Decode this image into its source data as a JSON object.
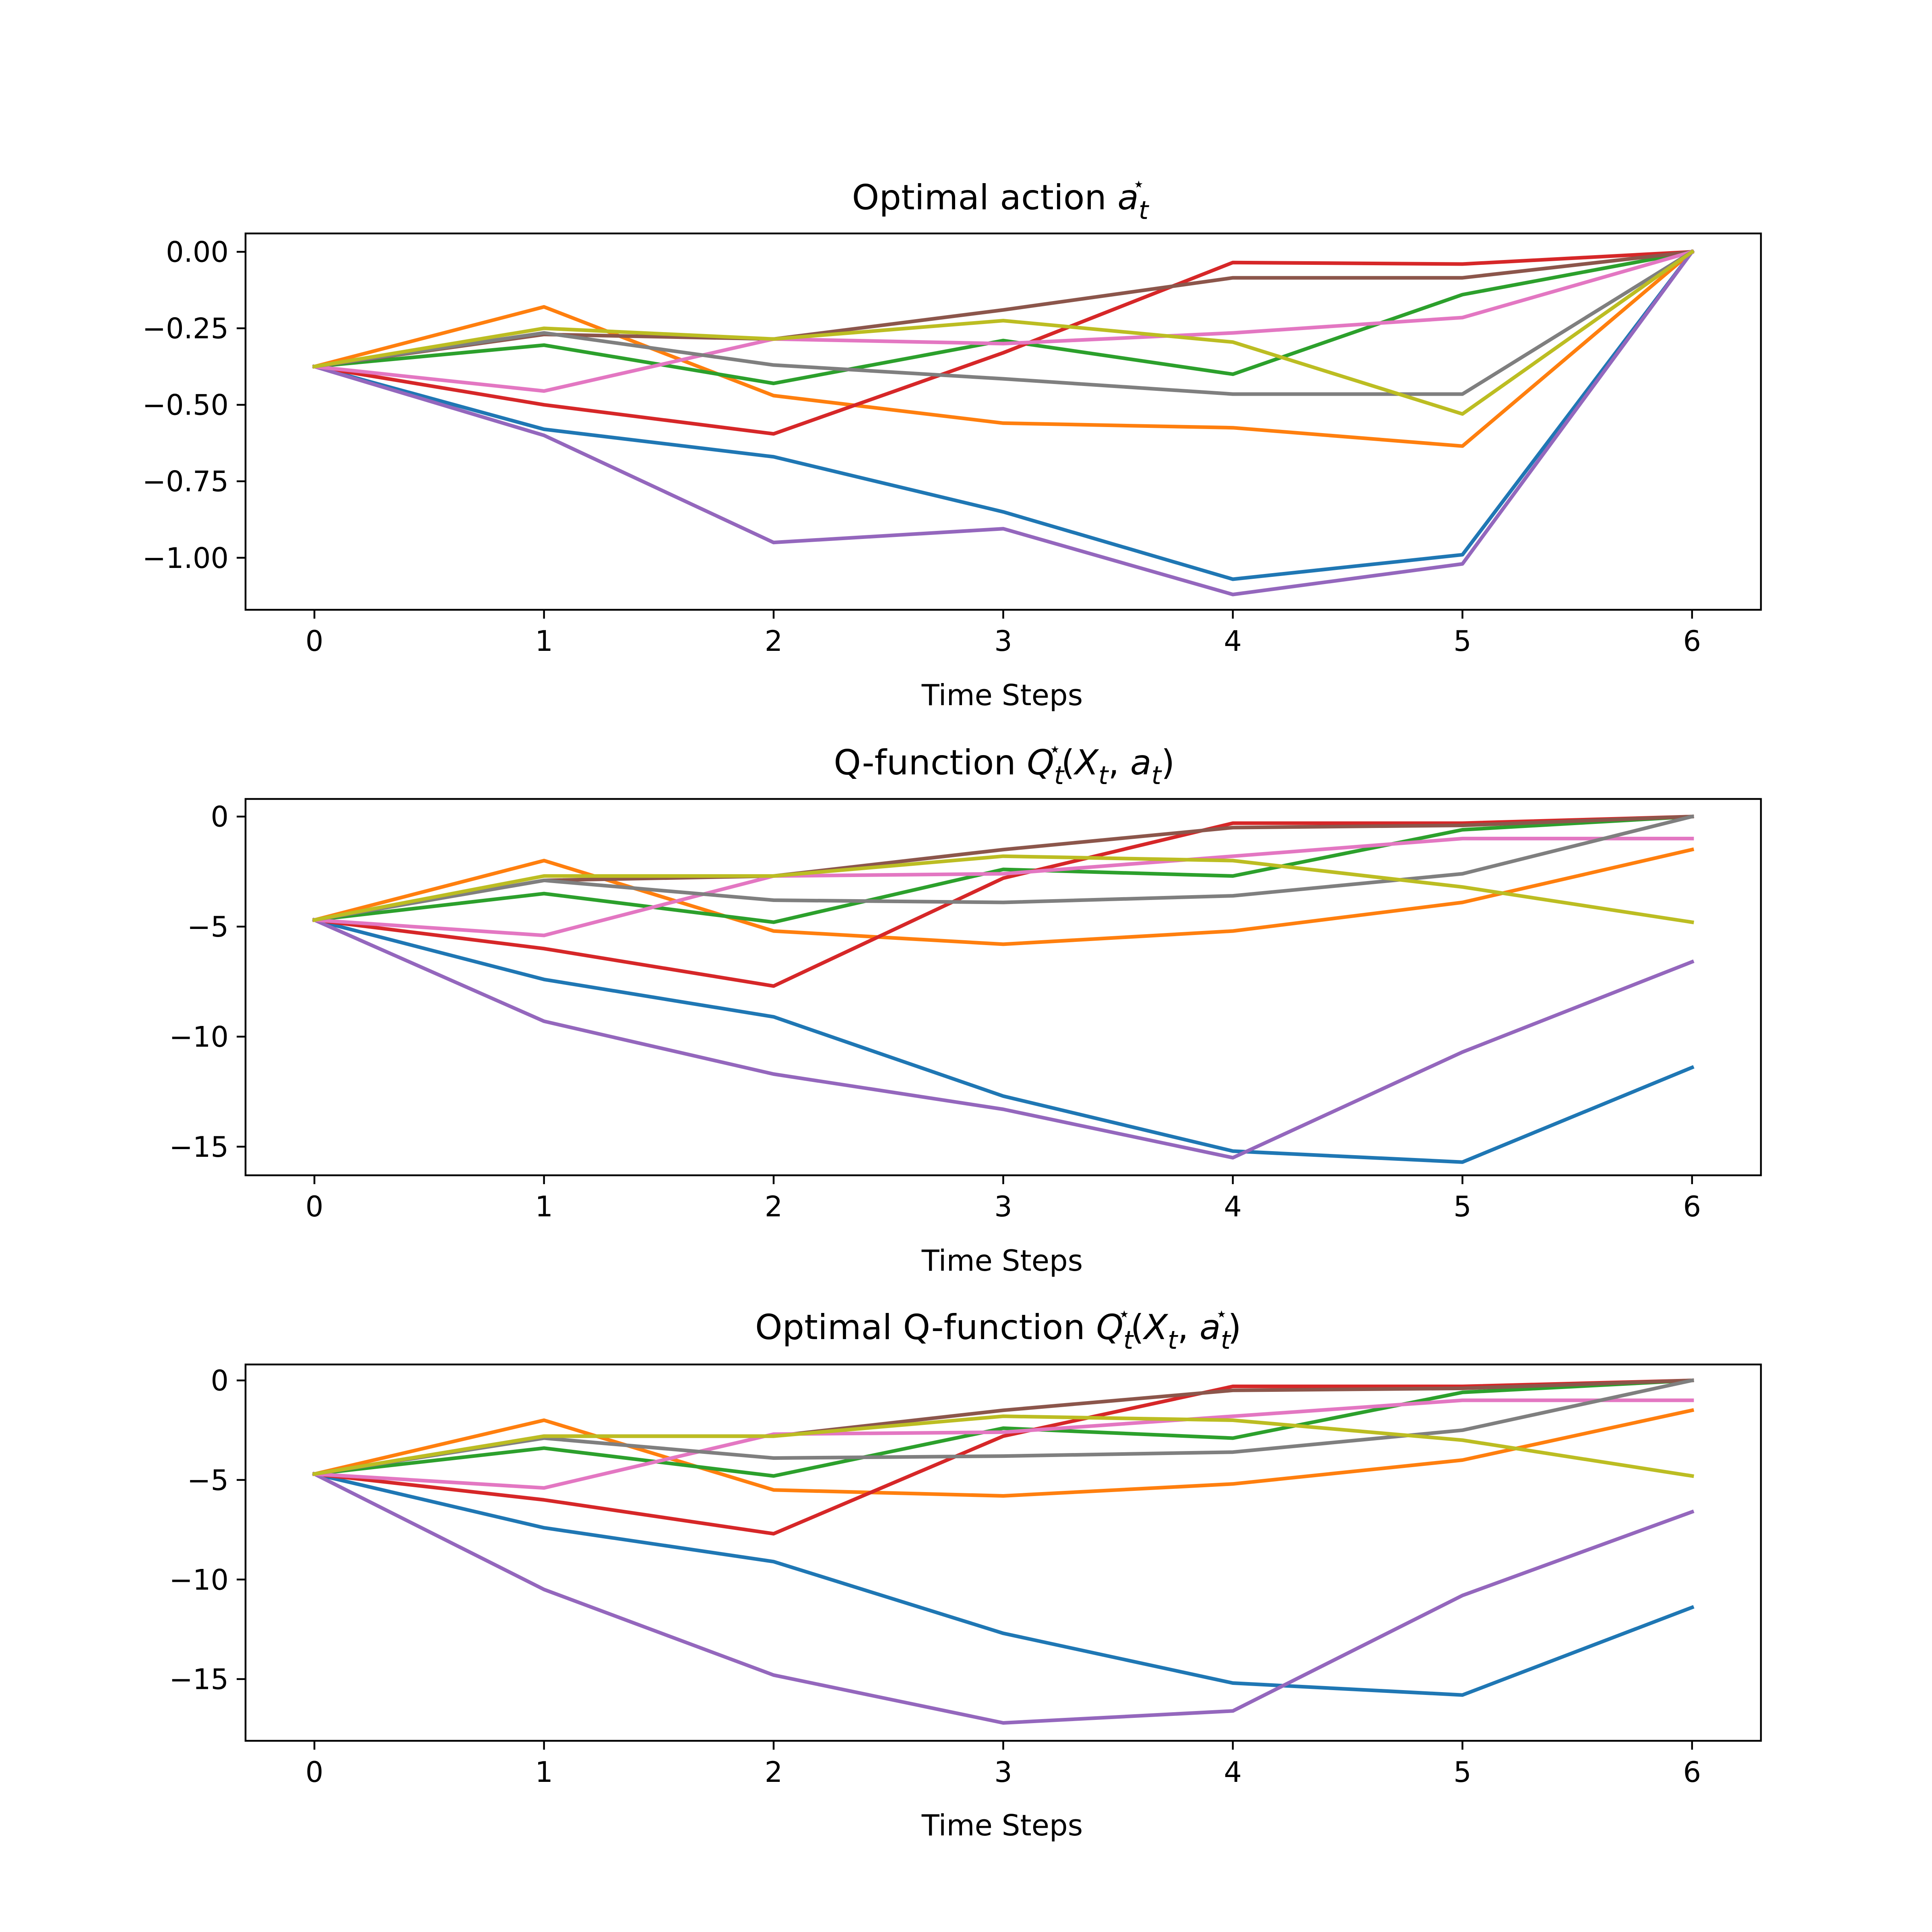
{
  "chart_data": [
    {
      "type": "line",
      "title": "Optimal action a*_t",
      "title_parts": {
        "main": "Optimal action ",
        "math": [
          "a",
          "t",
          "⋆"
        ]
      },
      "xlabel": "Time Steps",
      "ylabel": "",
      "x": [
        0,
        1,
        2,
        3,
        4,
        5,
        6
      ],
      "xlim": [
        -0.3,
        6.3
      ],
      "ylim": [
        -1.17,
        0.06
      ],
      "xticks": [
        0,
        1,
        2,
        3,
        4,
        5,
        6
      ],
      "xtick_labels": [
        "0",
        "1",
        "2",
        "3",
        "4",
        "5",
        "6"
      ],
      "yticks": [
        0,
        -0.25,
        -0.5,
        -0.75,
        -1.0
      ],
      "ytick_labels": [
        "0.00",
        "−0.25",
        "−0.50",
        "−0.75",
        "−1.00"
      ],
      "grid": false,
      "series": [
        {
          "color": "#1f77b4",
          "values": [
            -0.375,
            -0.58,
            -0.67,
            -0.85,
            -1.07,
            -0.99,
            0.0
          ]
        },
        {
          "color": "#ff7f0e",
          "values": [
            -0.375,
            -0.18,
            -0.47,
            -0.56,
            -0.575,
            -0.635,
            0.0
          ]
        },
        {
          "color": "#2ca02c",
          "values": [
            -0.375,
            -0.305,
            -0.43,
            -0.29,
            -0.4,
            -0.14,
            0.0
          ]
        },
        {
          "color": "#d62728",
          "values": [
            -0.375,
            -0.5,
            -0.595,
            -0.33,
            -0.035,
            -0.04,
            0.0
          ]
        },
        {
          "color": "#9467bd",
          "values": [
            -0.375,
            -0.6,
            -0.95,
            -0.905,
            -1.12,
            -1.02,
            0.0
          ]
        },
        {
          "color": "#8c564b",
          "values": [
            -0.375,
            -0.27,
            -0.285,
            -0.19,
            -0.085,
            -0.085,
            0.0
          ]
        },
        {
          "color": "#e377c2",
          "values": [
            -0.375,
            -0.455,
            -0.285,
            -0.3,
            -0.265,
            -0.215,
            0.0
          ]
        },
        {
          "color": "#7f7f7f",
          "values": [
            -0.375,
            -0.265,
            -0.37,
            -0.415,
            -0.465,
            -0.465,
            0.0
          ]
        },
        {
          "color": "#bcbd22",
          "values": [
            -0.375,
            -0.25,
            -0.285,
            -0.225,
            -0.295,
            -0.53,
            0.0
          ]
        }
      ]
    },
    {
      "type": "line",
      "title": "Q-function Q*_t(X_t, a_t)",
      "title_parts": {
        "main": "Q-function "
      },
      "xlabel": "Time Steps",
      "ylabel": "",
      "x": [
        0,
        1,
        2,
        3,
        4,
        5,
        6
      ],
      "xlim": [
        -0.3,
        6.3
      ],
      "ylim": [
        -16.3,
        0.8
      ],
      "xticks": [
        0,
        1,
        2,
        3,
        4,
        5,
        6
      ],
      "xtick_labels": [
        "0",
        "1",
        "2",
        "3",
        "4",
        "5",
        "6"
      ],
      "yticks": [
        0,
        -5,
        -10,
        -15
      ],
      "ytick_labels": [
        "0",
        "−5",
        "−10",
        "−15"
      ],
      "grid": false,
      "series": [
        {
          "color": "#1f77b4",
          "values": [
            -4.7,
            -7.4,
            -9.1,
            -12.7,
            -15.2,
            -15.7,
            -11.4
          ]
        },
        {
          "color": "#ff7f0e",
          "values": [
            -4.7,
            -2.0,
            -5.2,
            -5.8,
            -5.2,
            -3.9,
            -1.5
          ]
        },
        {
          "color": "#2ca02c",
          "values": [
            -4.7,
            -3.5,
            -4.8,
            -2.4,
            -2.7,
            -0.6,
            0.0
          ]
        },
        {
          "color": "#d62728",
          "values": [
            -4.7,
            -6.0,
            -7.7,
            -2.8,
            -0.3,
            -0.3,
            0.0
          ]
        },
        {
          "color": "#9467bd",
          "values": [
            -4.7,
            -9.3,
            -11.7,
            -13.3,
            -15.5,
            -10.7,
            -6.6
          ]
        },
        {
          "color": "#8c564b",
          "values": [
            -4.7,
            -2.9,
            -2.7,
            -1.5,
            -0.5,
            -0.4,
            0.0
          ]
        },
        {
          "color": "#e377c2",
          "values": [
            -4.7,
            -5.4,
            -2.7,
            -2.6,
            -1.8,
            -1.0,
            -1.0
          ]
        },
        {
          "color": "#7f7f7f",
          "values": [
            -4.7,
            -2.9,
            -3.8,
            -3.9,
            -3.6,
            -2.6,
            0.0
          ]
        },
        {
          "color": "#bcbd22",
          "values": [
            -4.7,
            -2.7,
            -2.7,
            -1.8,
            -2.0,
            -3.2,
            -4.8
          ]
        }
      ]
    },
    {
      "type": "line",
      "title": "Optimal Q-function Q*_t(X_t, a*_t)",
      "title_parts": {
        "main": "Optimal Q-function "
      },
      "xlabel": "Time Steps",
      "ylabel": "",
      "x": [
        0,
        1,
        2,
        3,
        4,
        5,
        6
      ],
      "xlim": [
        -0.3,
        6.3
      ],
      "ylim": [
        -18.1,
        0.8
      ],
      "xticks": [
        0,
        1,
        2,
        3,
        4,
        5,
        6
      ],
      "xtick_labels": [
        "0",
        "1",
        "2",
        "3",
        "4",
        "5",
        "6"
      ],
      "yticks": [
        0,
        -5,
        -10,
        -15
      ],
      "ytick_labels": [
        "0",
        "−5",
        "−10",
        "−15"
      ],
      "grid": false,
      "series": [
        {
          "color": "#1f77b4",
          "values": [
            -4.7,
            -7.4,
            -9.1,
            -12.7,
            -15.2,
            -15.8,
            -11.4
          ]
        },
        {
          "color": "#ff7f0e",
          "values": [
            -4.7,
            -2.0,
            -5.5,
            -5.8,
            -5.2,
            -4.0,
            -1.5
          ]
        },
        {
          "color": "#2ca02c",
          "values": [
            -4.7,
            -3.4,
            -4.8,
            -2.4,
            -2.9,
            -0.6,
            0.0
          ]
        },
        {
          "color": "#d62728",
          "values": [
            -4.7,
            -6.0,
            -7.7,
            -2.8,
            -0.3,
            -0.3,
            0.0
          ]
        },
        {
          "color": "#9467bd",
          "values": [
            -4.7,
            -10.5,
            -14.8,
            -17.2,
            -16.6,
            -10.8,
            -6.6
          ]
        },
        {
          "color": "#8c564b",
          "values": [
            -4.7,
            -2.8,
            -2.8,
            -1.5,
            -0.5,
            -0.4,
            0.0
          ]
        },
        {
          "color": "#e377c2",
          "values": [
            -4.7,
            -5.4,
            -2.7,
            -2.6,
            -1.8,
            -1.0,
            -1.0
          ]
        },
        {
          "color": "#7f7f7f",
          "values": [
            -4.7,
            -2.9,
            -3.9,
            -3.8,
            -3.6,
            -2.5,
            0.0
          ]
        },
        {
          "color": "#bcbd22",
          "values": [
            -4.7,
            -2.8,
            -2.8,
            -1.8,
            -2.0,
            -3.0,
            -4.8
          ]
        }
      ]
    }
  ]
}
